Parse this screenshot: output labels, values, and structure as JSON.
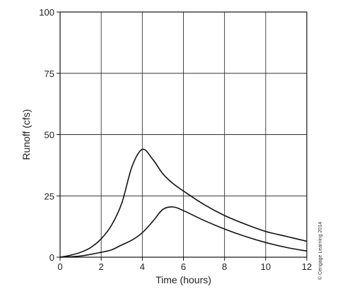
{
  "chart_data": {
    "type": "line",
    "xlabel": "Time (hours)",
    "ylabel": "Runoff (cfs)",
    "xlim": [
      0,
      12
    ],
    "ylim": [
      0,
      100
    ],
    "x_ticks": [
      0,
      2,
      4,
      6,
      8,
      10,
      12
    ],
    "y_ticks": [
      0,
      25,
      50,
      75,
      100
    ],
    "grid": true,
    "series": [
      {
        "color": "#111111",
        "x": [
          0,
          0.5,
          1,
          1.5,
          2,
          2.5,
          3,
          3.5,
          4,
          4.5,
          5,
          5.5,
          6,
          7,
          8,
          9,
          10,
          11,
          12
        ],
        "y": [
          0,
          0.8,
          2,
          4,
          7.5,
          13,
          22,
          37,
          44,
          40,
          34,
          30,
          27,
          21.5,
          17,
          13.5,
          10.5,
          8.5,
          6.5
        ]
      },
      {
        "color": "#111111",
        "x": [
          0,
          1,
          2,
          2.5,
          3,
          3.5,
          4,
          4.5,
          5,
          5.5,
          6,
          7,
          8,
          9,
          10,
          11,
          12
        ],
        "y": [
          0,
          0.5,
          2,
          3,
          5,
          7,
          10,
          14.5,
          19.5,
          20.5,
          19,
          15,
          11.5,
          8.5,
          6,
          4,
          2.5
        ]
      }
    ]
  },
  "credit": "© Cengage Learning 2014"
}
